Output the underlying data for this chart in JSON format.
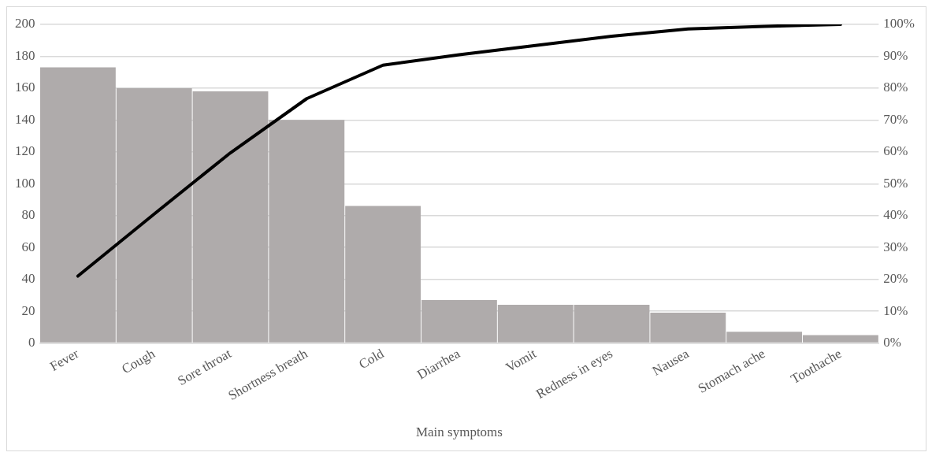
{
  "chart_data": {
    "type": "bar",
    "xlabel": "Main symptoms",
    "categories": [
      "Fever",
      "Cough",
      "Sore throat",
      "Shortness breath",
      "Cold",
      "Diarrhea",
      "Vomit",
      "Redness in eyes",
      "Nausea",
      "Stomach ache",
      "Toothache"
    ],
    "series": [
      {
        "color": "#afabab",
        "values": [
          173,
          160,
          158,
          140,
          86,
          27,
          24,
          24,
          19,
          7,
          5
        ]
      },
      {
        "type": "line",
        "axis": "y2",
        "color": "#000000",
        "values": [
          21.0,
          40.5,
          59.7,
          76.7,
          87.2,
          90.5,
          93.4,
          96.3,
          98.6,
          99.4,
          100
        ]
      }
    ],
    "ylim": [
      0,
      200
    ],
    "yticks": [
      0,
      20,
      40,
      60,
      80,
      100,
      120,
      140,
      160,
      180,
      200
    ],
    "y2lim": [
      0,
      100
    ],
    "y2ticks": [
      {
        "value": 0,
        "label": "0%"
      },
      {
        "value": 10,
        "label": "10%"
      },
      {
        "value": 20,
        "label": "20%"
      },
      {
        "value": 30,
        "label": "30%"
      },
      {
        "value": 40,
        "label": "40%"
      },
      {
        "value": 50,
        "label": "50%"
      },
      {
        "value": 60,
        "label": "60%"
      },
      {
        "value": 70,
        "label": "70%"
      },
      {
        "value": 80,
        "label": "80%"
      },
      {
        "value": 90,
        "label": "90%"
      },
      {
        "value": 100,
        "label": "100%"
      }
    ],
    "grid": "y",
    "legend": false,
    "marker": "none",
    "line_style": "solid"
  }
}
